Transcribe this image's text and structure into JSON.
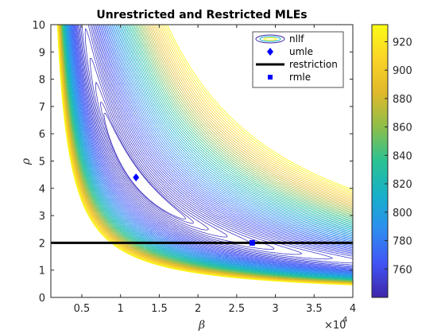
{
  "chart_data": {
    "type": "contour",
    "title": "Unrestricted and Restricted MLEs",
    "xlabel": "β",
    "ylabel": "ρ",
    "xlim": [
      1000,
      40000
    ],
    "ylim": [
      0,
      10
    ],
    "x_exponent_label": "×10",
    "x_exponent_power": "4",
    "xticks": [
      5000,
      10000,
      15000,
      20000,
      25000,
      30000,
      35000,
      40000
    ],
    "xtick_labels": [
      "0.5",
      "1",
      "1.5",
      "2",
      "2.5",
      "3",
      "3.5",
      "4"
    ],
    "yticks": [
      0,
      1,
      2,
      3,
      4,
      5,
      6,
      7,
      8,
      9,
      10
    ],
    "ytick_labels": [
      "0",
      "1",
      "2",
      "3",
      "4",
      "5",
      "6",
      "7",
      "8",
      "9",
      "10"
    ],
    "colorbar": {
      "range": [
        740,
        932
      ],
      "ticks": [
        760,
        780,
        800,
        820,
        840,
        860,
        880,
        900,
        920
      ],
      "tick_labels": [
        "760",
        "780",
        "800",
        "820",
        "840",
        "860",
        "880",
        "900",
        "920"
      ],
      "colormap": [
        "#3e26a8",
        "#4154f6",
        "#2d8ef0",
        "#16b0c9",
        "#2ac292",
        "#8ebe49",
        "#dfb92b",
        "#fbd427",
        "#f9fb15"
      ]
    },
    "series": [
      {
        "name": "nllf",
        "kind": "contour"
      },
      {
        "name": "umle",
        "kind": "point",
        "x": 12000,
        "y": 4.4,
        "marker": "diamond",
        "color": "#0000ff"
      },
      {
        "name": "restriction",
        "kind": "line",
        "y": 2,
        "color": "#000000"
      },
      {
        "name": "rmle",
        "kind": "point",
        "x": 27000,
        "y": 2,
        "marker": "square",
        "color": "#0000ff"
      }
    ],
    "grid": false,
    "legend_position": "top-right"
  }
}
